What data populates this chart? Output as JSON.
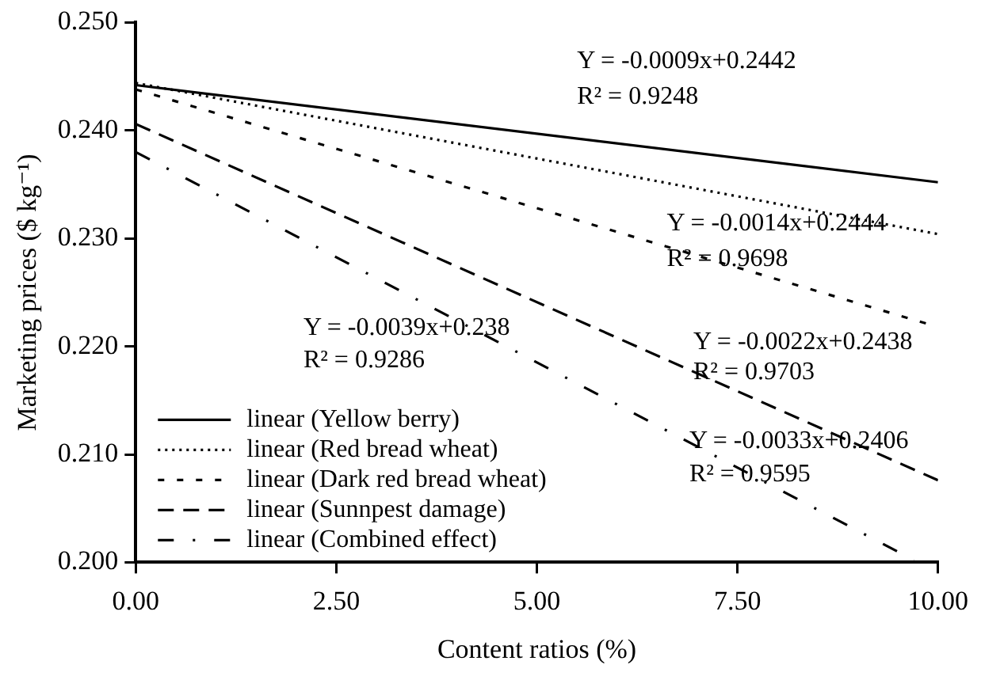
{
  "chart_data": {
    "type": "line",
    "xlabel": "Content ratios (%)",
    "ylabel": "Marketing prices ($ kg⁻¹)",
    "xlim": [
      0,
      10
    ],
    "xticks": [
      {
        "value": 0,
        "label": "0.00"
      },
      {
        "value": 2.5,
        "label": "2.50"
      },
      {
        "value": 5,
        "label": "5.00"
      },
      {
        "value": 7.5,
        "label": "7.50"
      },
      {
        "value": 10,
        "label": "10.00"
      }
    ],
    "ylim": [
      0.2,
      0.25
    ],
    "yticks": [
      {
        "value": 0.2,
        "label": "0.200"
      },
      {
        "value": 0.21,
        "label": "0.210"
      },
      {
        "value": 0.22,
        "label": "0.220"
      },
      {
        "value": 0.23,
        "label": "0.230"
      },
      {
        "value": 0.24,
        "label": "0.240"
      },
      {
        "value": 0.25,
        "label": "0.250"
      }
    ],
    "legend": "bottom left",
    "marker": "none",
    "series": [
      {
        "name": "linear (Yellow berry)",
        "color": "#000000",
        "line_style": "solid",
        "x": [
          0,
          10
        ],
        "values": [
          0.2442,
          0.2352
        ]
      },
      {
        "name": "linear (Red bread wheat)",
        "color": "#000000",
        "line_style": "dotted",
        "x": [
          0,
          10
        ],
        "values": [
          0.2444,
          0.2304
        ]
      },
      {
        "name": "linear (Dark red bread wheat)",
        "color": "#000000",
        "line_style": "dashed",
        "x": [
          0,
          10
        ],
        "values": [
          0.2438,
          0.2218
        ]
      },
      {
        "name": "linear (Sunnpest damage)",
        "color": "#000000",
        "line_style": "longdash",
        "x": [
          0,
          10
        ],
        "values": [
          0.2406,
          0.2076
        ]
      },
      {
        "name": "linear (Combined effect)",
        "color": "#000000",
        "line_style": "dashdot",
        "x": [
          0,
          9.7
        ],
        "values": [
          0.238,
          0.2002
        ]
      }
    ],
    "annotations": [
      "Y = -0.0009x+0.2442",
      "R² = 0.9248",
      "Y = -0.0014x+0.2444",
      "R² = 0.9698",
      "Y = -0.0039x+0.238",
      "R² = 0.9286",
      "Y = -0.0022x+0.2438",
      "R² = 0.9703",
      "Y = -0.0033x+0.2406",
      "R² = 0.9595"
    ]
  }
}
